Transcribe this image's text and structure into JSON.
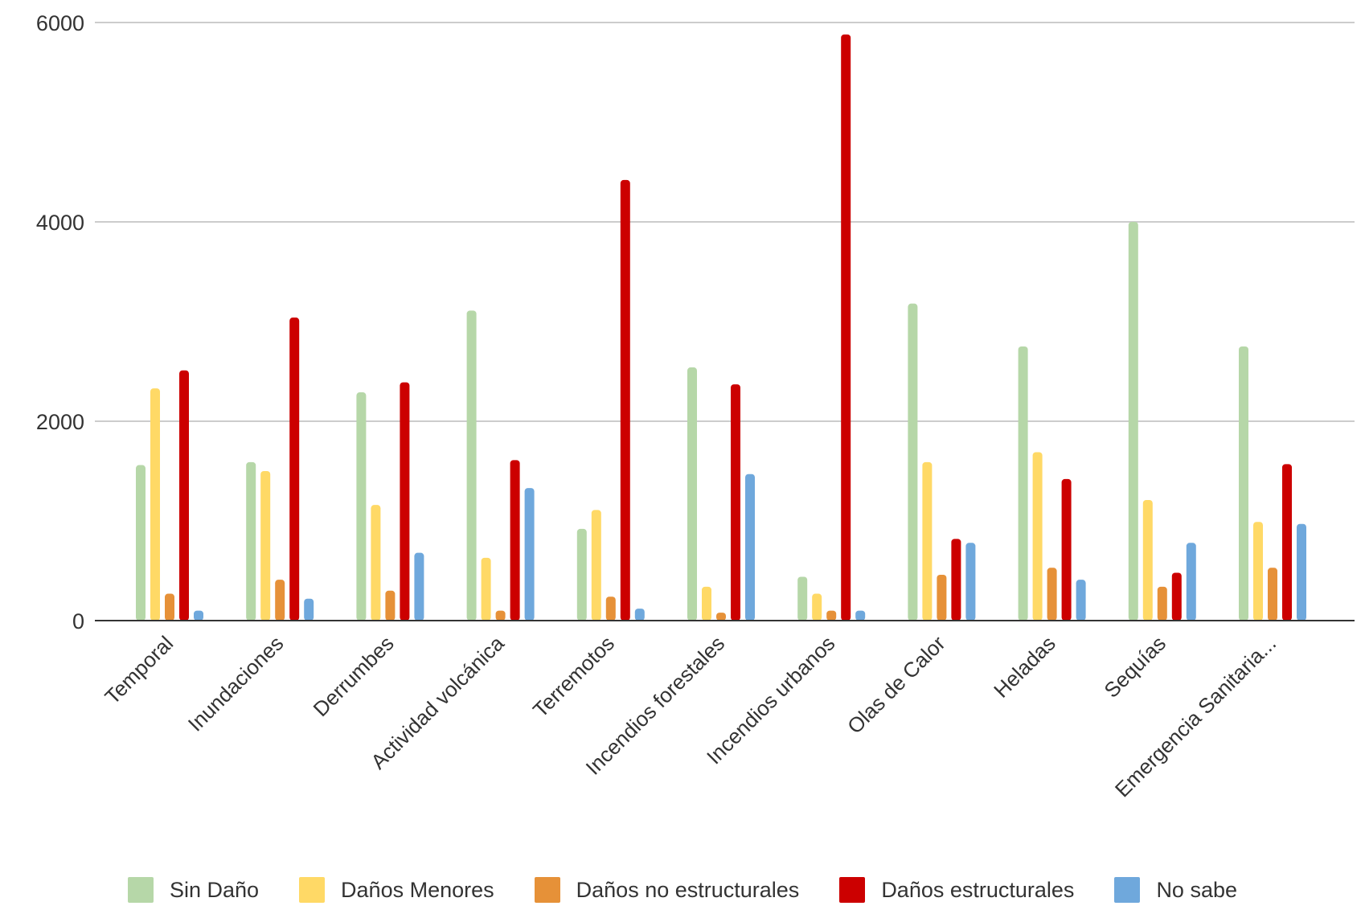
{
  "chart_data": {
    "type": "bar",
    "title": "",
    "xlabel": "",
    "ylabel": "",
    "ylim": [
      0,
      6000
    ],
    "yticks": [
      0,
      2000,
      4000,
      6000
    ],
    "grid": true,
    "legend_position": "bottom",
    "categories": [
      "Temporal",
      "Inundaciones",
      "Derrumbes",
      "Actividad volcánica",
      "Terremotos",
      "Incendios forestales",
      "Incendios urbanos",
      "Olas de Calor",
      "Heladas",
      "Sequías",
      "Emergencia Sanitaria..."
    ],
    "series": [
      {
        "name": "Sin Daño",
        "color": "#b6d7a8",
        "values": [
          1560,
          1590,
          2290,
          3110,
          920,
          2540,
          440,
          3180,
          2750,
          4000,
          2750
        ]
      },
      {
        "name": "Daños Menores",
        "color": "#ffd966",
        "values": [
          2330,
          1500,
          1160,
          630,
          1110,
          340,
          270,
          1590,
          1690,
          1210,
          990
        ]
      },
      {
        "name": "Daños no estructurales",
        "color": "#e69138",
        "values": [
          270,
          410,
          300,
          100,
          240,
          80,
          100,
          460,
          530,
          340,
          530
        ]
      },
      {
        "name": "Daños estructurales",
        "color": "#cc0000",
        "values": [
          2510,
          3040,
          2390,
          1610,
          4420,
          2370,
          5880,
          820,
          1420,
          480,
          1570
        ]
      },
      {
        "name": "No sabe",
        "color": "#6fa8dc",
        "values": [
          100,
          220,
          680,
          1330,
          120,
          1470,
          100,
          780,
          410,
          780,
          970
        ]
      }
    ]
  }
}
